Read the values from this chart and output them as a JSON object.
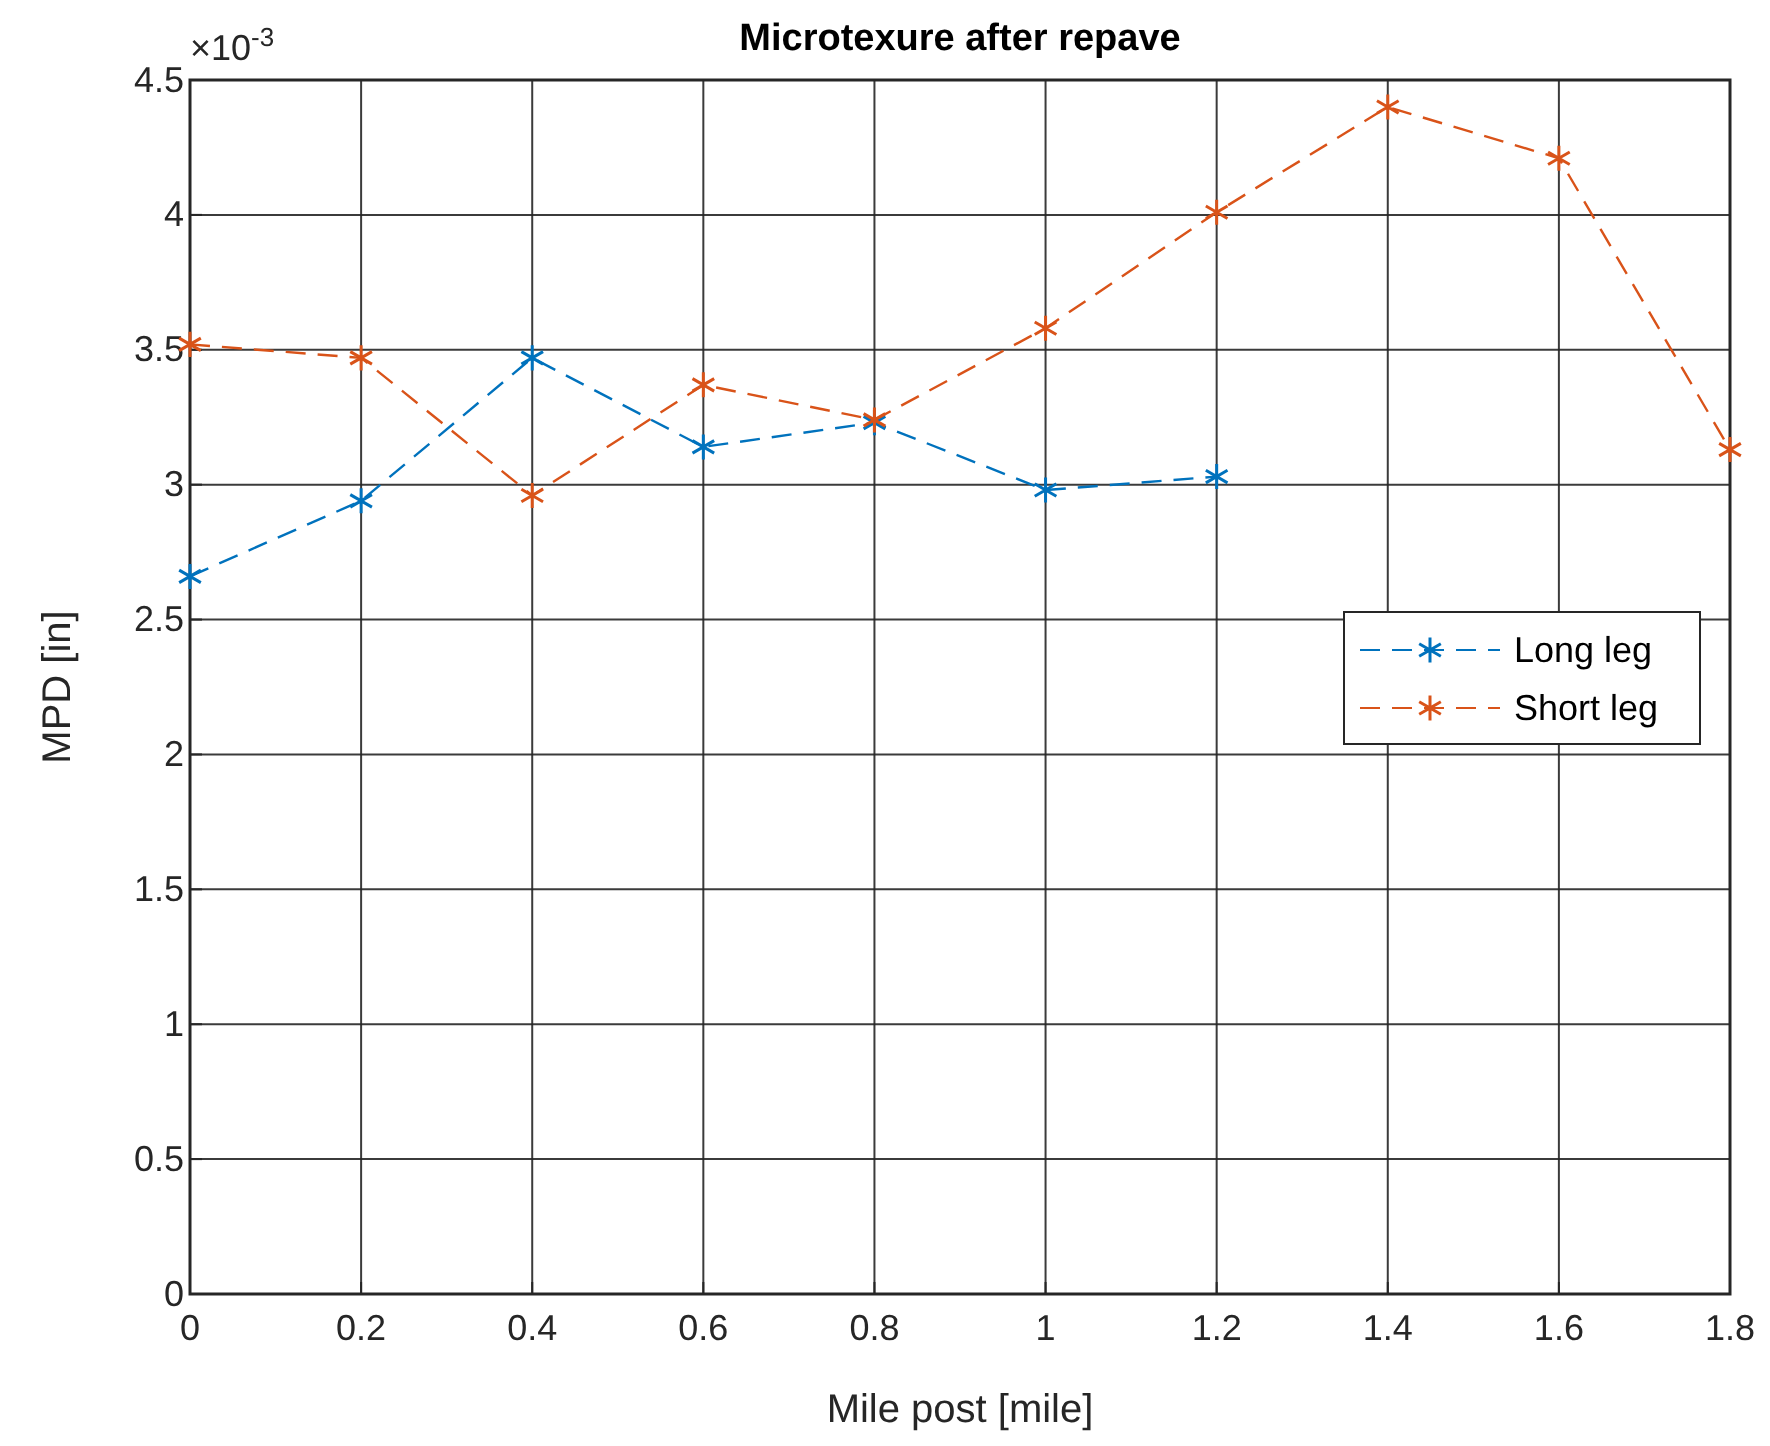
{
  "chart_data": {
    "type": "line",
    "title": "Microtexure after repave",
    "xlabel": "Mile post [mile]",
    "ylabel": "MPD [in]",
    "annotations": [
      "×10$^{-3}$"
    ],
    "x": [
      0,
      0.2,
      0.4,
      0.6,
      0.8,
      1,
      1.2,
      1.4,
      1.6,
      1.8
    ],
    "series": [
      {
        "name": "Long leg",
        "color": "#0072bd",
        "values": [
          2.66,
          2.94,
          3.47,
          3.14,
          3.23,
          2.98,
          3.03,
          null,
          null,
          null
        ]
      },
      {
        "name": "Short leg",
        "color": "#d95319",
        "values": [
          3.52,
          3.47,
          2.96,
          3.37,
          3.24,
          3.58,
          4.01,
          4.4,
          4.21,
          3.13
        ]
      }
    ],
    "xlim": [
      0,
      1.8
    ],
    "xticks": [
      0,
      0.2,
      0.4,
      0.6,
      0.8,
      1,
      1.2,
      1.4,
      1.6,
      1.8
    ],
    "ylim": [
      0,
      4.5
    ],
    "yticks": [
      0,
      0.5,
      1,
      1.5,
      2,
      2.5,
      3,
      3.5,
      4,
      4.5
    ],
    "grid": true,
    "legend": "right",
    "marker": "cross",
    "line_style": "dashed"
  }
}
